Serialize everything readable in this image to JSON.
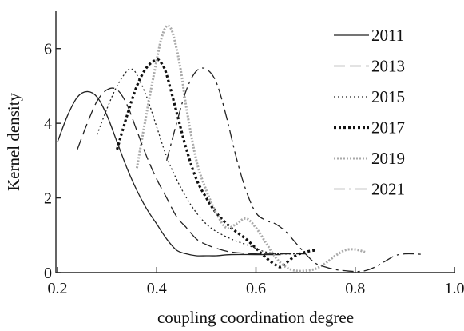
{
  "chart_data": {
    "type": "line",
    "xlabel": "coupling coordination degree",
    "ylabel": "Kernel density",
    "xlim": [
      0.2,
      1.0
    ],
    "ylim": [
      0,
      7
    ],
    "xticks": [
      0.2,
      0.4,
      0.6,
      0.8,
      1.0
    ],
    "xtick_labels": [
      "0.2",
      "0.4",
      "0.6",
      "0.8",
      "1.0"
    ],
    "yticks": [
      0,
      2,
      4,
      6
    ],
    "ytick_labels": [
      "0",
      "2",
      "4",
      "6"
    ],
    "grid": false,
    "legend_position": "top-right",
    "series": [
      {
        "name": "2011",
        "color": "#222222",
        "style": "solid",
        "x": [
          0.2,
          0.22,
          0.24,
          0.26,
          0.28,
          0.3,
          0.32,
          0.34,
          0.36,
          0.38,
          0.4,
          0.42,
          0.44,
          0.46,
          0.48,
          0.5,
          0.52,
          0.55,
          0.6,
          0.65
        ],
        "y": [
          3.5,
          4.2,
          4.7,
          4.85,
          4.7,
          4.2,
          3.5,
          2.8,
          2.2,
          1.7,
          1.3,
          0.9,
          0.6,
          0.5,
          0.45,
          0.45,
          0.45,
          0.48,
          0.48,
          0.48
        ]
      },
      {
        "name": "2013",
        "color": "#222222",
        "style": "longdash",
        "x": [
          0.24,
          0.26,
          0.28,
          0.3,
          0.32,
          0.34,
          0.36,
          0.38,
          0.4,
          0.42,
          0.44,
          0.46,
          0.48,
          0.5,
          0.52,
          0.55,
          0.6,
          0.65,
          0.7
        ],
        "y": [
          3.3,
          4.0,
          4.6,
          4.9,
          4.9,
          4.5,
          3.8,
          3.1,
          2.5,
          2.0,
          1.5,
          1.2,
          0.9,
          0.75,
          0.65,
          0.55,
          0.5,
          0.5,
          0.5
        ]
      },
      {
        "name": "2015",
        "color": "#222222",
        "style": "dotted",
        "x": [
          0.28,
          0.3,
          0.32,
          0.34,
          0.35,
          0.36,
          0.38,
          0.4,
          0.42,
          0.44,
          0.46,
          0.48,
          0.5,
          0.52,
          0.55,
          0.58,
          0.6,
          0.62,
          0.65,
          0.68
        ],
        "y": [
          3.7,
          4.4,
          5.0,
          5.4,
          5.45,
          5.3,
          4.7,
          3.9,
          3.1,
          2.5,
          2.0,
          1.6,
          1.3,
          1.1,
          0.9,
          0.75,
          0.65,
          0.55,
          0.5,
          0.5
        ]
      },
      {
        "name": "2017",
        "color": "#111111",
        "style": "bold-dotted",
        "x": [
          0.32,
          0.34,
          0.36,
          0.38,
          0.4,
          0.41,
          0.42,
          0.44,
          0.46,
          0.48,
          0.5,
          0.52,
          0.55,
          0.58,
          0.6,
          0.62,
          0.64,
          0.65,
          0.66,
          0.68,
          0.7,
          0.72
        ],
        "y": [
          3.3,
          4.2,
          5.0,
          5.5,
          5.7,
          5.6,
          5.3,
          4.3,
          3.3,
          2.5,
          2.0,
          1.6,
          1.2,
          0.9,
          0.65,
          0.4,
          0.2,
          0.15,
          0.25,
          0.45,
          0.55,
          0.6
        ]
      },
      {
        "name": "2019",
        "color": "#aaaaaa",
        "style": "gray-dotted",
        "x": [
          0.36,
          0.38,
          0.4,
          0.41,
          0.42,
          0.43,
          0.44,
          0.45,
          0.46,
          0.48,
          0.5,
          0.52,
          0.54,
          0.56,
          0.58,
          0.6,
          0.62,
          0.64,
          0.66,
          0.68,
          0.7,
          0.72,
          0.74,
          0.76,
          0.78,
          0.8,
          0.82
        ],
        "y": [
          2.8,
          4.3,
          5.7,
          6.3,
          6.6,
          6.5,
          6.0,
          5.3,
          4.4,
          3.0,
          2.2,
          1.6,
          1.2,
          1.3,
          1.45,
          1.2,
          0.8,
          0.4,
          0.15,
          0.05,
          0.05,
          0.1,
          0.25,
          0.45,
          0.6,
          0.62,
          0.55
        ]
      },
      {
        "name": "2021",
        "color": "#222222",
        "style": "dashdot",
        "x": [
          0.42,
          0.44,
          0.46,
          0.48,
          0.5,
          0.52,
          0.54,
          0.56,
          0.58,
          0.6,
          0.62,
          0.64,
          0.66,
          0.68,
          0.7,
          0.72,
          0.74,
          0.76,
          0.78,
          0.8,
          0.82,
          0.84,
          0.86,
          0.88,
          0.9,
          0.92,
          0.94
        ],
        "y": [
          3.0,
          4.0,
          4.9,
          5.4,
          5.45,
          5.1,
          4.2,
          3.1,
          2.2,
          1.6,
          1.4,
          1.3,
          1.1,
          0.8,
          0.5,
          0.25,
          0.15,
          0.08,
          0.05,
          0.03,
          0.05,
          0.15,
          0.3,
          0.45,
          0.5,
          0.5,
          0.48
        ]
      }
    ]
  }
}
